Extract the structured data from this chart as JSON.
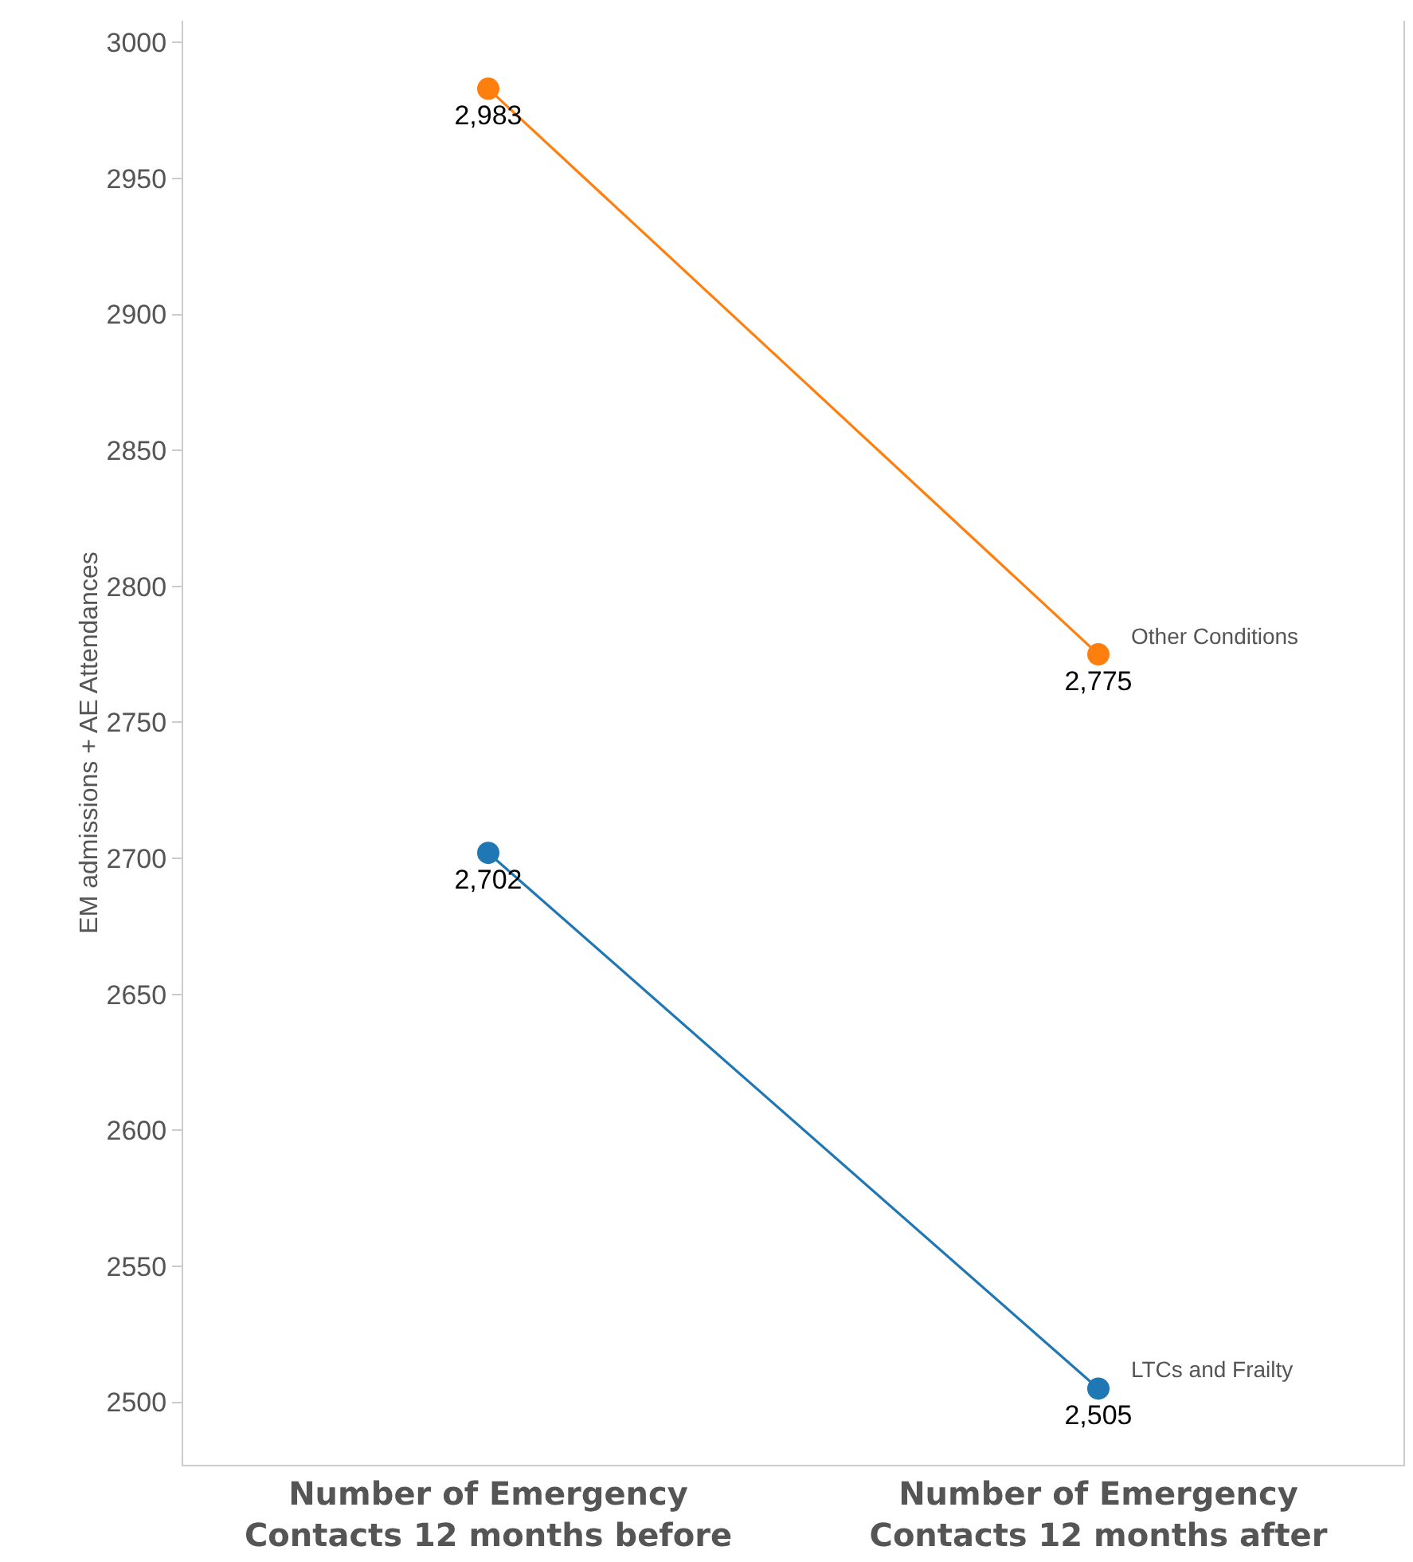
{
  "chart_data": {
    "type": "line",
    "ylabel": "EM admissions + AE Attendances",
    "categories": [
      "Number of Emergency\nContacts 12 months before",
      "Number of Emergency\nContacts 12 months after"
    ],
    "series": [
      {
        "name": "Other Conditions",
        "color": "#ff7f0e",
        "values": [
          2983,
          2775
        ],
        "value_labels": [
          "2,983",
          "2,775"
        ]
      },
      {
        "name": "LTCs and Frailty",
        "color": "#1f77b4",
        "values": [
          2702,
          2505
        ],
        "value_labels": [
          "2,702",
          "2,505"
        ]
      }
    ],
    "ylim": [
      2477,
      3008
    ],
    "yticks": [
      2500,
      2550,
      2600,
      2650,
      2700,
      2750,
      2800,
      2850,
      2900,
      2950,
      3000
    ],
    "grid": false,
    "legend": false,
    "marker": "circle",
    "line_style": "solid"
  }
}
